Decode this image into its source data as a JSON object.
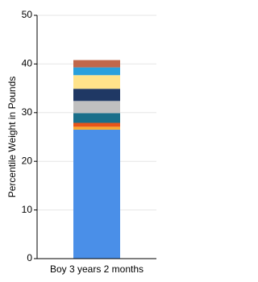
{
  "chart_data": {
    "type": "stacked-bar",
    "ylabel": "Percentile Weight in Pounds",
    "categories": [
      "Boy 3 years 2 months"
    ],
    "series": [
      {
        "color": "#4a8fe8",
        "values": [
          26.5
        ]
      },
      {
        "color": "#f7a830",
        "values": [
          0.6
        ]
      },
      {
        "color": "#e8541a",
        "values": [
          0.8
        ]
      },
      {
        "color": "#1a6f8a",
        "values": [
          2.0
        ]
      },
      {
        "color": "#c0c0c0",
        "values": [
          2.5
        ]
      },
      {
        "color": "#1f3864",
        "values": [
          2.5
        ]
      },
      {
        "color": "#ffe38a",
        "values": [
          2.8
        ]
      },
      {
        "color": "#29a0dc",
        "values": [
          1.6
        ]
      },
      {
        "color": "#c0674a",
        "values": [
          1.5
        ]
      }
    ],
    "ylim": [
      0,
      50
    ],
    "yticks": [
      0,
      10,
      20,
      30,
      40,
      50
    ],
    "grid": true
  }
}
